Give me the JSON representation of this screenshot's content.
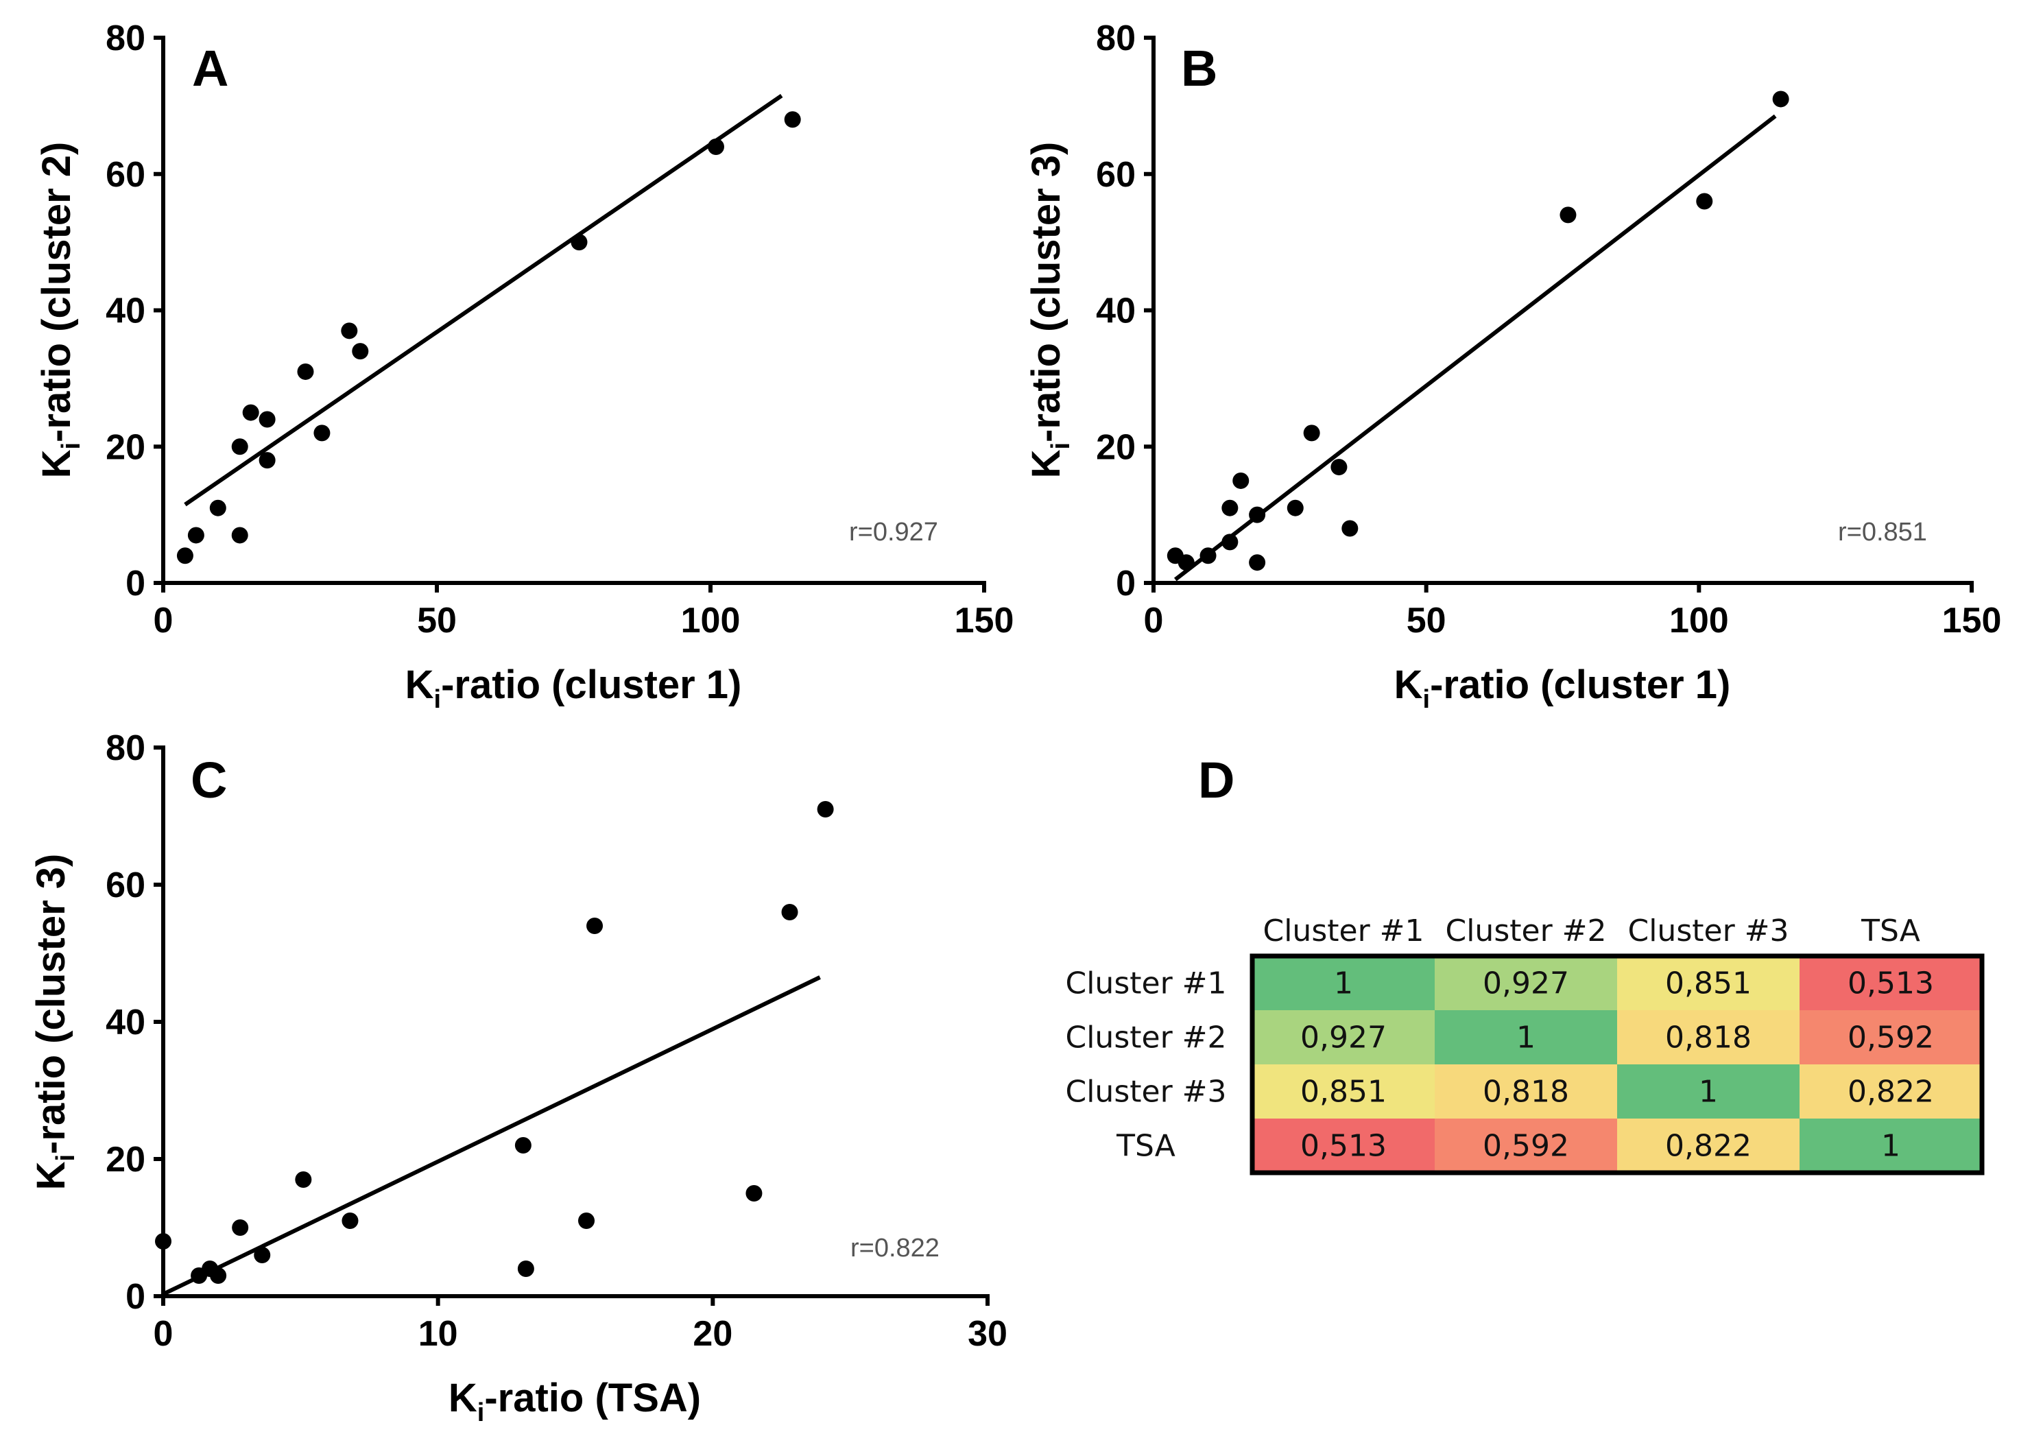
{
  "chart_data": [
    {
      "panel": "A",
      "type": "scatter",
      "xlabel_main": "K",
      "xlabel_sub": "i",
      "xlabel_rest": "-ratio (cluster 1)",
      "ylabel_main": "K",
      "ylabel_sub": "i",
      "ylabel_rest": "-ratio (cluster 2)",
      "xlim": [
        0,
        150
      ],
      "ylim": [
        0,
        80
      ],
      "xticks": [
        0,
        50,
        100,
        150
      ],
      "yticks": [
        0,
        20,
        40,
        60,
        80
      ],
      "x": [
        4,
        6,
        10,
        14,
        14,
        16,
        19,
        19,
        26,
        29,
        34,
        36,
        76,
        101,
        115
      ],
      "y": [
        4,
        7,
        11,
        20,
        7,
        25,
        24,
        18,
        31,
        22,
        37,
        34,
        50,
        64,
        68
      ],
      "fit": {
        "x1": 4,
        "y1": 11.5,
        "x2": 113,
        "y2": 71.5
      },
      "annotation": "r=0.927"
    },
    {
      "panel": "B",
      "type": "scatter",
      "xlabel_main": "K",
      "xlabel_sub": "i",
      "xlabel_rest": "-ratio (cluster 1)",
      "ylabel_main": "K",
      "ylabel_sub": "i",
      "ylabel_rest": "-ratio (cluster 3)",
      "xlim": [
        0,
        150
      ],
      "ylim": [
        0,
        80
      ],
      "xticks": [
        0,
        50,
        100,
        150
      ],
      "yticks": [
        0,
        20,
        40,
        60,
        80
      ],
      "x": [
        4,
        6,
        10,
        14,
        14,
        16,
        19,
        19,
        26,
        29,
        34,
        36,
        76,
        101,
        115
      ],
      "y": [
        4,
        3,
        4,
        11,
        6,
        15,
        10,
        3,
        11,
        22,
        17,
        8,
        54,
        56,
        71
      ],
      "fit": {
        "x1": 4,
        "y1": 0.5,
        "x2": 114,
        "y2": 68.5
      },
      "annotation": "r=0.851"
    },
    {
      "panel": "C",
      "type": "scatter",
      "xlabel_main": "K",
      "xlabel_sub": "i",
      "xlabel_rest": "-ratio (TSA)",
      "ylabel_main": "K",
      "ylabel_sub": "i",
      "ylabel_rest": "-ratio (cluster 3)",
      "xlim": [
        0,
        30
      ],
      "ylim": [
        0,
        80
      ],
      "xticks": [
        0,
        10,
        20,
        30
      ],
      "yticks": [
        0,
        20,
        40,
        60,
        80
      ],
      "x": [
        0,
        1.3,
        1.7,
        2.0,
        2.8,
        3.6,
        5.1,
        6.8,
        13.1,
        13.2,
        15.4,
        15.7,
        21.5,
        22.8,
        24.1
      ],
      "y": [
        8,
        3,
        4,
        3,
        10,
        6,
        17,
        11,
        22,
        4,
        11,
        54,
        15,
        56,
        71
      ],
      "fit": {
        "x1": 0,
        "y1": 0.3,
        "x2": 23.9,
        "y2": 46.5
      },
      "annotation": "r=0.822"
    },
    {
      "panel": "D",
      "type": "table",
      "columns": [
        "Cluster #1",
        "Cluster #2",
        "Cluster #3",
        "TSA"
      ],
      "rows": [
        "Cluster #1",
        "Cluster #2",
        "Cluster #3",
        "TSA"
      ],
      "cells": [
        [
          "1",
          "0,927",
          "0,851",
          "0,513"
        ],
        [
          "0,927",
          "1",
          "0,818",
          "0,592"
        ],
        [
          "0,851",
          "0,818",
          "1",
          "0,822"
        ],
        [
          "0,513",
          "0,592",
          "0,822",
          "1"
        ]
      ],
      "colors": [
        [
          "#63be7b",
          "#a9d47f",
          "#f0e47e",
          "#f16a6a"
        ],
        [
          "#a9d47f",
          "#63be7b",
          "#f7d97c",
          "#f5876e"
        ],
        [
          "#f0e47e",
          "#f7d97c",
          "#63be7b",
          "#f7d97c"
        ],
        [
          "#f16a6a",
          "#f5876e",
          "#f7d97c",
          "#63be7b"
        ]
      ]
    }
  ]
}
